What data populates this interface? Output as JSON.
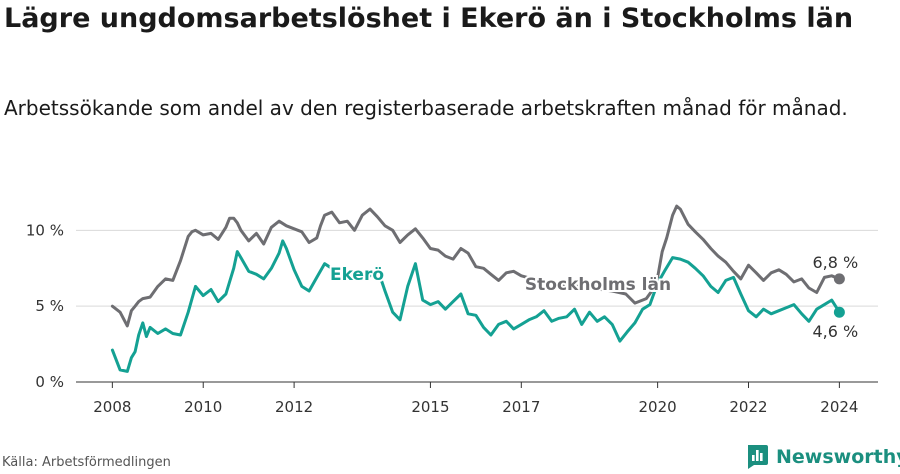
{
  "header": {
    "title": "Lägre ungdomsarbetslöshet i Ekerö än i Stockholms län",
    "subtitle": "Arbetssökande som andel av den registerbaserade arbetskraften månad för månad."
  },
  "footer": {
    "source": "Källa: Arbetsförmedlingen",
    "brand": "Newsworthy"
  },
  "colors": {
    "stockholm": "#6e6e72",
    "ekero": "#14a193",
    "grid": "#d9d9d9",
    "axis": "#333333",
    "brand": "#1b8f7f"
  },
  "chart_data": {
    "type": "line",
    "title": "Lägre ungdomsarbetslöshet i Ekerö än i Stockholms län",
    "subtitle": "Arbetssökande som andel av den registerbaserade arbetskraften månad för månad.",
    "xlabel": "",
    "ylabel": "",
    "xlim": [
      2007.2,
      2024.85
    ],
    "ylim": [
      0,
      12
    ],
    "x_ticks": [
      2008,
      2010,
      2012,
      2015,
      2017,
      2020,
      2022,
      2024
    ],
    "x_tick_labels": [
      "2008",
      "2010",
      "2012",
      "2015",
      "2017",
      "2020",
      "2022",
      "2024"
    ],
    "y_ticks": [
      0,
      5,
      10
    ],
    "y_tick_labels": [
      "0 %",
      "5 %",
      "10 %"
    ],
    "grid": true,
    "series": [
      {
        "name": "Stockholms län",
        "label": "Stockholms län",
        "end_label": "6,8 %",
        "x": [
          2008.0,
          2008.17,
          2008.33,
          2008.42,
          2008.5,
          2008.58,
          2008.67,
          2008.83,
          2009.0,
          2009.17,
          2009.33,
          2009.5,
          2009.67,
          2009.75,
          2009.83,
          2010.0,
          2010.17,
          2010.33,
          2010.5,
          2010.58,
          2010.67,
          2010.75,
          2010.83,
          2011.0,
          2011.17,
          2011.33,
          2011.5,
          2011.67,
          2011.83,
          2012.0,
          2012.17,
          2012.33,
          2012.5,
          2012.58,
          2012.67,
          2012.83,
          2013.0,
          2013.17,
          2013.33,
          2013.5,
          2013.67,
          2013.83,
          2014.0,
          2014.17,
          2014.33,
          2014.5,
          2014.67,
          2014.83,
          2015.0,
          2015.17,
          2015.33,
          2015.5,
          2015.67,
          2015.83,
          2016.0,
          2016.17,
          2016.33,
          2016.5,
          2016.67,
          2016.83,
          2017.0,
          2017.5,
          2018.0,
          2018.5,
          2019.0,
          2019.3,
          2019.5,
          2019.75,
          2019.92,
          2020.0,
          2020.1,
          2020.2,
          2020.33,
          2020.42,
          2020.5,
          2020.67,
          2020.83,
          2021.0,
          2021.17,
          2021.33,
          2021.5,
          2021.67,
          2021.83,
          2022.0,
          2022.17,
          2022.33,
          2022.5,
          2022.67,
          2022.83,
          2023.0,
          2023.17,
          2023.33,
          2023.5,
          2023.67,
          2023.83,
          2024.0
        ],
        "values": [
          5.0,
          4.6,
          3.7,
          4.7,
          5.0,
          5.3,
          5.5,
          5.6,
          6.3,
          6.8,
          6.7,
          8.0,
          9.6,
          9.9,
          10.0,
          9.7,
          9.8,
          9.4,
          10.2,
          10.8,
          10.8,
          10.5,
          10.0,
          9.3,
          9.8,
          9.1,
          10.2,
          10.6,
          10.3,
          10.1,
          9.9,
          9.2,
          9.5,
          10.3,
          11.0,
          11.2,
          10.5,
          10.6,
          10.0,
          11.0,
          11.4,
          10.9,
          10.3,
          10.0,
          9.2,
          9.7,
          10.1,
          9.5,
          8.8,
          8.7,
          8.3,
          8.1,
          8.8,
          8.5,
          7.6,
          7.5,
          7.1,
          6.7,
          7.2,
          7.3,
          7.0,
          6.6,
          6.4,
          6.2,
          6.0,
          5.8,
          5.2,
          5.5,
          6.2,
          6.9,
          8.6,
          9.5,
          11.0,
          11.6,
          11.4,
          10.4,
          9.9,
          9.4,
          8.8,
          8.3,
          7.9,
          7.3,
          6.8,
          7.7,
          7.2,
          6.7,
          7.2,
          7.4,
          7.1,
          6.6,
          6.8,
          6.2,
          5.9,
          6.9,
          7.0,
          6.8
        ]
      },
      {
        "name": "Ekerö",
        "label": "Ekerö",
        "end_label": "4,6 %",
        "x": [
          2008.0,
          2008.17,
          2008.33,
          2008.42,
          2008.5,
          2008.58,
          2008.67,
          2008.75,
          2008.83,
          2009.0,
          2009.17,
          2009.33,
          2009.5,
          2009.67,
          2009.83,
          2010.0,
          2010.17,
          2010.33,
          2010.5,
          2010.67,
          2010.75,
          2010.83,
          2011.0,
          2011.17,
          2011.33,
          2011.5,
          2011.67,
          2011.75,
          2011.83,
          2012.0,
          2012.17,
          2012.33,
          2012.5,
          2012.67,
          2012.83,
          2013.0,
          2013.17,
          2013.33,
          2013.5,
          2013.67,
          2013.83,
          2014.0,
          2014.17,
          2014.33,
          2014.5,
          2014.67,
          2014.83,
          2015.0,
          2015.17,
          2015.33,
          2015.5,
          2015.67,
          2015.83,
          2016.0,
          2016.17,
          2016.33,
          2016.5,
          2016.67,
          2016.83,
          2017.0,
          2017.17,
          2017.33,
          2017.5,
          2017.67,
          2017.83,
          2018.0,
          2018.17,
          2018.33,
          2018.5,
          2018.67,
          2018.83,
          2019.0,
          2019.17,
          2019.33,
          2019.5,
          2019.67,
          2019.83,
          2020.0,
          2020.17,
          2020.33,
          2020.5,
          2020.67,
          2020.83,
          2021.0,
          2021.17,
          2021.33,
          2021.5,
          2021.67,
          2021.83,
          2022.0,
          2022.17,
          2022.33,
          2022.5,
          2022.67,
          2022.83,
          2023.0,
          2023.17,
          2023.33,
          2023.5,
          2023.67,
          2023.83,
          2024.0
        ],
        "values": [
          2.1,
          0.8,
          0.7,
          1.6,
          2.0,
          3.1,
          3.9,
          3.0,
          3.6,
          3.2,
          3.5,
          3.2,
          3.1,
          4.6,
          6.3,
          5.7,
          6.1,
          5.3,
          5.8,
          7.5,
          8.6,
          8.2,
          7.3,
          7.1,
          6.8,
          7.5,
          8.5,
          9.3,
          8.8,
          7.4,
          6.3,
          6.0,
          6.9,
          7.8,
          7.5,
          7.4,
          7.0,
          7.3,
          7.2,
          7.0,
          7.5,
          6.0,
          4.6,
          4.1,
          6.3,
          7.8,
          5.4,
          5.1,
          5.3,
          4.8,
          5.3,
          5.8,
          4.5,
          4.4,
          3.6,
          3.1,
          3.8,
          4.0,
          3.5,
          3.8,
          4.1,
          4.3,
          4.7,
          4.0,
          4.2,
          4.3,
          4.8,
          3.8,
          4.6,
          4.0,
          4.3,
          3.8,
          2.7,
          3.3,
          3.9,
          4.8,
          5.1,
          6.5,
          7.4,
          8.2,
          8.1,
          7.9,
          7.5,
          7.0,
          6.3,
          5.9,
          6.7,
          6.9,
          5.8,
          4.7,
          4.3,
          4.8,
          4.5,
          4.7,
          4.9,
          5.1,
          4.5,
          4.0,
          4.8,
          5.1,
          5.4,
          4.6
        ]
      }
    ]
  }
}
